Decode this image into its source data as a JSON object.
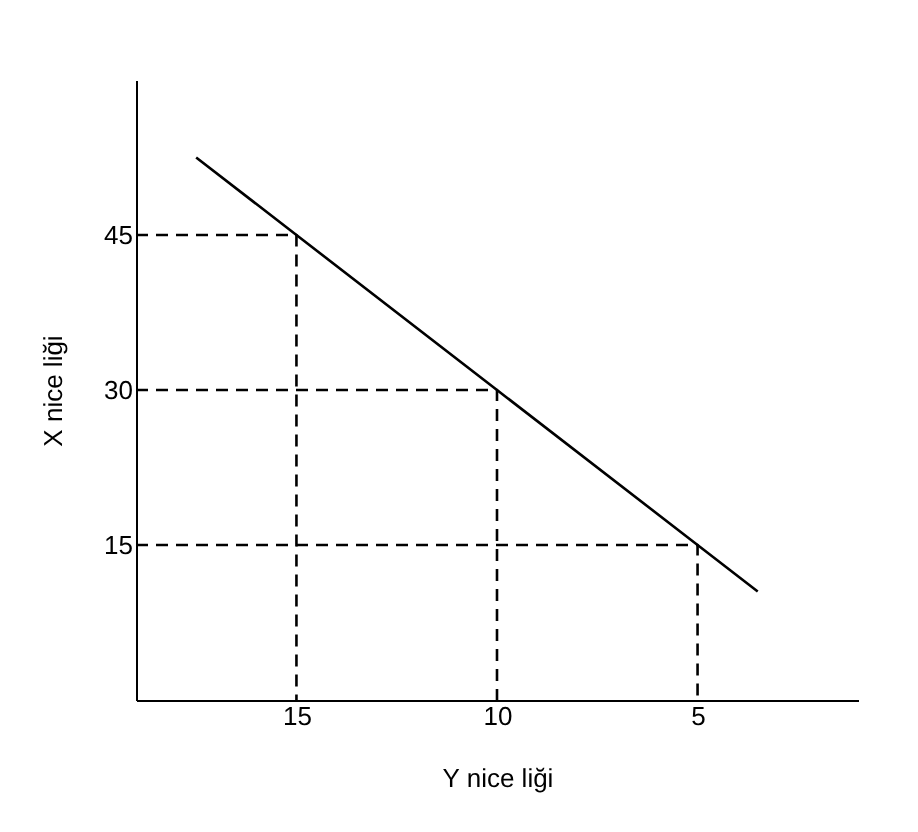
{
  "chart_data": {
    "type": "line",
    "xlabel": "Y nice liği",
    "ylabel": "X nice liği",
    "xlim": [
      19,
      1
    ],
    "ylim": [
      0,
      60
    ],
    "xticks": [
      15,
      10,
      5
    ],
    "yticks": [
      15,
      30,
      45
    ],
    "grid": false,
    "series": [
      {
        "color": "#000000",
        "x": [
          17.5,
          15,
          10,
          5,
          3.5
        ],
        "values": [
          52.5,
          45,
          30,
          15,
          10.5
        ],
        "line_style": "solid"
      },
      {
        "color": "#000000",
        "x": [
          19,
          15,
          15
        ],
        "values": [
          45,
          45,
          0
        ],
        "line_style": "dashed"
      },
      {
        "color": "#000000",
        "x": [
          19,
          10,
          10
        ],
        "values": [
          30,
          30,
          0
        ],
        "line_style": "dashed"
      },
      {
        "color": "#000000",
        "x": [
          19,
          5,
          5
        ],
        "values": [
          15,
          15,
          0
        ],
        "line_style": "dashed"
      }
    ]
  }
}
